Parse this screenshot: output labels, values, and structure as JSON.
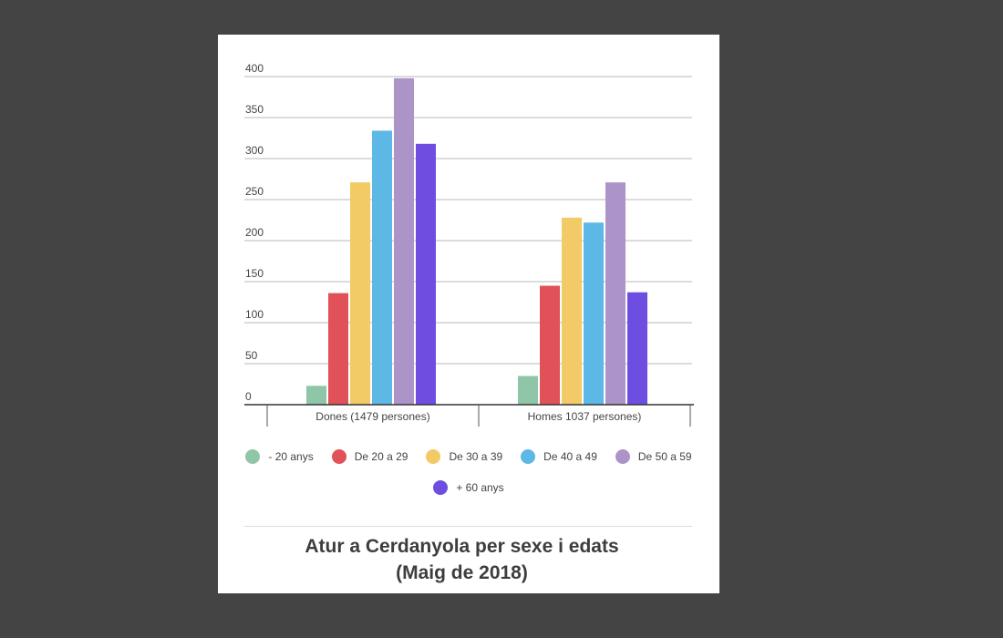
{
  "chart_data": {
    "type": "bar",
    "categories": [
      "Dones (1479 persones)",
      "Homes 1037 persones)"
    ],
    "series": [
      {
        "name": "- 20 anys",
        "color": "#8fc6a7",
        "values": [
          23,
          35
        ]
      },
      {
        "name": "De 20 a 29",
        "color": "#e05158",
        "values": [
          136,
          145
        ]
      },
      {
        "name": "De 30 a 39",
        "color": "#f2cb66",
        "values": [
          271,
          228
        ]
      },
      {
        "name": "De 40 a 49",
        "color": "#5db8e6",
        "values": [
          334,
          222
        ]
      },
      {
        "name": "De 50 a 59",
        "color": "#ac94c9",
        "values": [
          398,
          271
        ]
      },
      {
        "name": "+ 60 anys",
        "color": "#6d4ee0",
        "values": [
          318,
          137
        ]
      }
    ],
    "ylim": [
      0,
      400
    ],
    "yticks": [
      "0",
      "50",
      "100",
      "150",
      "200",
      "250",
      "300",
      "350",
      "400"
    ],
    "xlabel": "",
    "ylabel": "",
    "grid": true,
    "legend_position": "bottom",
    "title": [
      "Atur a Cerdanyola per sexe i edats",
      "(Maig de 2018)"
    ]
  }
}
